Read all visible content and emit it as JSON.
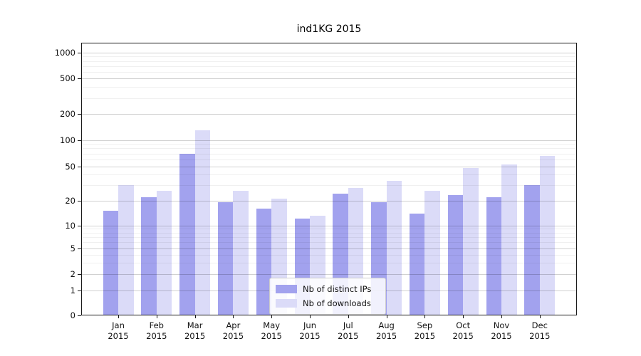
{
  "chart_data": {
    "type": "bar",
    "title": "ind1KG 2015",
    "categories": [
      "Jan",
      "Feb",
      "Mar",
      "Apr",
      "May",
      "Jun",
      "Jul",
      "Aug",
      "Sep",
      "Oct",
      "Nov",
      "Dec"
    ],
    "category_year": "2015",
    "series": [
      {
        "name": "Nb of distinct IPs",
        "color": "#a2a2ee",
        "values": [
          15,
          22,
          70,
          19,
          16,
          12,
          24,
          19,
          14,
          23,
          22,
          30
        ]
      },
      {
        "name": "Nb of downloads",
        "color": "#dbdbf8",
        "values": [
          30,
          26,
          130,
          26,
          21,
          13,
          28,
          34,
          26,
          48,
          52,
          65
        ]
      }
    ],
    "ylabel": "",
    "xlabel": "",
    "yscale": "symlog",
    "yticks": [
      0,
      1,
      2,
      5,
      10,
      20,
      50,
      100,
      200,
      500,
      1000
    ],
    "ylim": [
      0,
      1400
    ],
    "grid": true,
    "legend_position": "lower center"
  }
}
